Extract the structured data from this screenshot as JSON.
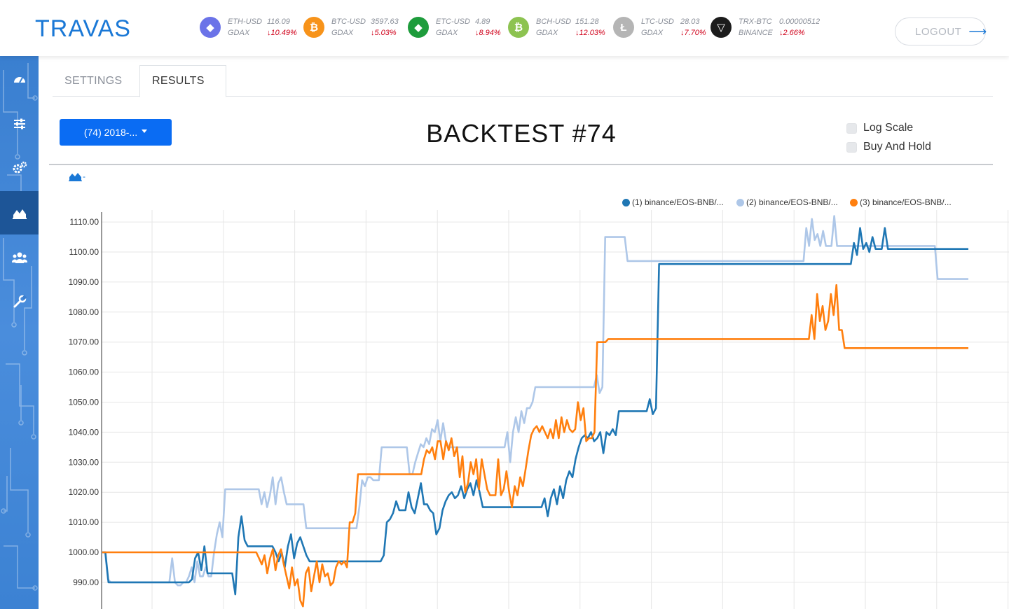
{
  "brand": "TRAVAS",
  "tickers": [
    {
      "pair": "ETH-USD",
      "exchange": "GDAX",
      "price": "116.09",
      "change": "↓10.49%",
      "icon": "ethereum-icon",
      "color": "#6b73e8",
      "glyph": "◆"
    },
    {
      "pair": "BTC-USD",
      "exchange": "GDAX",
      "price": "3597.63",
      "change": "↓5.03%",
      "icon": "bitcoin-icon",
      "color": "#f7931a",
      "glyph": "₿"
    },
    {
      "pair": "ETC-USD",
      "exchange": "GDAX",
      "price": "4.89",
      "change": "↓8.94%",
      "icon": "ethereum-classic-icon",
      "color": "#1e9c3c",
      "glyph": "◆"
    },
    {
      "pair": "BCH-USD",
      "exchange": "GDAX",
      "price": "151.28",
      "change": "↓12.03%",
      "icon": "bitcoin-cash-icon",
      "color": "#8dc351",
      "glyph": "₿"
    },
    {
      "pair": "LTC-USD",
      "exchange": "GDAX",
      "price": "28.03",
      "change": "↓7.70%",
      "icon": "litecoin-icon",
      "color": "#b5b5b5",
      "glyph": "Ł"
    },
    {
      "pair": "TRX-BTC",
      "exchange": "BINANCE",
      "price": "0.00000512",
      "change": "↓2.66%",
      "icon": "tron-icon",
      "color": "#1c1c1c",
      "glyph": "▽"
    }
  ],
  "logout_label": "LOGOUT",
  "sidebar": [
    {
      "icon": "dashboard-icon",
      "active": false
    },
    {
      "icon": "sliders-icon",
      "active": false
    },
    {
      "icon": "gears-icon",
      "active": false
    },
    {
      "icon": "area-chart-icon",
      "active": true
    },
    {
      "icon": "users-icon",
      "active": false
    },
    {
      "icon": "wrench-icon",
      "active": false
    }
  ],
  "tabs": [
    {
      "label": "SETTINGS",
      "active": false
    },
    {
      "label": "RESULTS",
      "active": true
    }
  ],
  "backtest_select": "(74) 2018-...",
  "title": "BACKTEST #74",
  "options": {
    "log_scale": "Log Scale",
    "buy_and_hold": "Buy And Hold"
  },
  "chart_toggle_label": "-",
  "colors": {
    "series1": "#1f77b4",
    "series2": "#aec7e8",
    "series3": "#ff7f0e",
    "accent": "#0a6cf3"
  },
  "chart_data": {
    "type": "line",
    "ylim": [
      982,
      1112
    ],
    "yticks": [
      "1110.00",
      "1100.00",
      "1090.00",
      "1080.00",
      "1070.00",
      "1060.00",
      "1050.00",
      "1040.00",
      "1030.00",
      "1020.00",
      "1010.00",
      "1000.00",
      "990.00"
    ],
    "series": [
      {
        "name": "(1) binance/EOS-BNB/...",
        "values": [
          1000,
          1000,
          990,
          990,
          990,
          990,
          990,
          990,
          990,
          990,
          990,
          990,
          990,
          990,
          990,
          990,
          990,
          990,
          990,
          990,
          990,
          990,
          990,
          990,
          990,
          990,
          990,
          990,
          990,
          991,
          998,
          1000,
          994,
          1002,
          993,
          993,
          993,
          993,
          993,
          993,
          993,
          993,
          993,
          986,
          1005,
          1012,
          1004,
          1002,
          1002,
          1002,
          1002,
          1002,
          1002,
          1002,
          1002,
          1002,
          1000,
          997,
          1000,
          995,
          1002,
          1006,
          998,
          1003,
          1005,
          1002,
          999,
          997,
          997,
          997,
          997,
          997,
          997,
          997,
          997,
          997,
          997,
          997,
          997,
          997,
          997,
          997,
          997,
          997,
          997,
          997,
          997,
          997,
          997,
          997,
          997,
          999,
          1010,
          1011,
          1013,
          1017,
          1014,
          1014,
          1014,
          1020,
          1015,
          1013,
          1018,
          1023,
          1016,
          1016,
          1014,
          1013,
          1006,
          1008,
          1014,
          1017,
          1019,
          1020,
          1018,
          1019,
          1022,
          1018,
          1021,
          1023,
          1019,
          1024,
          1020,
          1015,
          1015,
          1015,
          1015,
          1015,
          1015,
          1015,
          1015,
          1015,
          1015,
          1015,
          1015,
          1015,
          1015,
          1015,
          1015,
          1015,
          1015,
          1015,
          1015,
          1018,
          1012,
          1018,
          1021,
          1016,
          1022,
          1018,
          1024,
          1027,
          1025,
          1031,
          1035,
          1038,
          1039,
          1038,
          1040,
          1037,
          1038,
          1040,
          1033,
          1040,
          1039,
          1041,
          1039,
          1047,
          1047,
          1047,
          1047,
          1047,
          1047,
          1047,
          1047,
          1047,
          1047,
          1051,
          1046,
          1048,
          1096,
          1096,
          1096,
          1096,
          1096,
          1096,
          1096,
          1096,
          1096,
          1096,
          1096,
          1096,
          1096,
          1096,
          1096,
          1096,
          1096,
          1096,
          1096,
          1096,
          1096,
          1096,
          1096,
          1096,
          1096,
          1096,
          1096,
          1096,
          1096,
          1096,
          1096,
          1096,
          1096,
          1096,
          1096,
          1096,
          1096,
          1096,
          1096,
          1096,
          1096,
          1096,
          1096,
          1096,
          1096,
          1096,
          1096,
          1096,
          1096,
          1096,
          1096,
          1096,
          1096,
          1096,
          1096,
          1096,
          1096,
          1096,
          1096,
          1096,
          1096,
          1096,
          1096,
          1103,
          1099,
          1108,
          1101,
          1103,
          1100,
          1105,
          1101,
          1101,
          1101,
          1108,
          1101,
          1101,
          1101,
          1101,
          1101,
          1101,
          1101,
          1101,
          1101,
          1101,
          1101,
          1101,
          1101,
          1101,
          1101,
          1101,
          1101,
          1101,
          1101,
          1101,
          1101,
          1101,
          1101,
          1101,
          1101,
          1101,
          1101
        ]
      },
      {
        "name": "(2) binance/EOS-BNB/...",
        "values": [
          1000,
          1000,
          991,
          990,
          990,
          990,
          990,
          990,
          990,
          990,
          990,
          990,
          990,
          990,
          990,
          990,
          990,
          990,
          990,
          990,
          990,
          990,
          990,
          990,
          990,
          998,
          990,
          989,
          989,
          990,
          990,
          992,
          995,
          990,
          997,
          992,
          992,
          995,
          992,
          992,
          1000,
          1006,
          1010,
          1005,
          1021,
          1021,
          1021,
          1021,
          1021,
          1021,
          1021,
          1021,
          1021,
          1021,
          1021,
          1021,
          1021,
          1016,
          1020,
          1015,
          1019,
          1025,
          1016,
          1023,
          1025,
          1020,
          1016,
          1016,
          1016,
          1016,
          1016,
          1016,
          1016,
          1008,
          1008,
          1008,
          1008,
          1008,
          1008,
          1008,
          1008,
          1008,
          1008,
          1008,
          1008,
          1008,
          1008,
          1008,
          1008,
          1008,
          1008,
          1008,
          1015,
          1024,
          1022,
          1025,
          1025,
          1024,
          1024,
          1024,
          1035,
          1035,
          1035,
          1035,
          1035,
          1035,
          1035,
          1035,
          1035,
          1035,
          1026,
          1026,
          1030,
          1033,
          1036,
          1035,
          1038,
          1036,
          1041,
          1040,
          1044,
          1037,
          1043,
          1037,
          1035,
          1035,
          1035,
          1035,
          1035,
          1035,
          1035,
          1035,
          1035,
          1035,
          1035,
          1035,
          1035,
          1035,
          1035,
          1035,
          1035,
          1035,
          1035,
          1035,
          1035,
          1040,
          1030,
          1040,
          1045,
          1040,
          1047,
          1043,
          1048,
          1048,
          1050,
          1055,
          1055,
          1055,
          1055,
          1055,
          1055,
          1055,
          1055,
          1055,
          1055,
          1055,
          1055,
          1055,
          1055,
          1055,
          1055,
          1055,
          1055,
          1055,
          1055,
          1055,
          1055,
          1059,
          1053,
          1055,
          1105,
          1105,
          1105,
          1105,
          1105,
          1105,
          1105,
          1105,
          1097,
          1097,
          1097,
          1097,
          1097,
          1097,
          1097,
          1097,
          1097,
          1097,
          1097,
          1097,
          1097,
          1097,
          1097,
          1097,
          1097,
          1097,
          1097,
          1097,
          1097,
          1097,
          1097,
          1097,
          1097,
          1097,
          1097,
          1097,
          1097,
          1097,
          1097,
          1097,
          1097,
          1097,
          1097,
          1097,
          1097,
          1097,
          1097,
          1097,
          1097,
          1097,
          1097,
          1097,
          1097,
          1097,
          1097,
          1097,
          1097,
          1097,
          1097,
          1097,
          1097,
          1097,
          1097,
          1097,
          1097,
          1097,
          1097,
          1097,
          1097,
          1097,
          1097,
          1097,
          1108,
          1102,
          1111,
          1104,
          1106,
          1102,
          1107,
          1102,
          1102,
          1102,
          1112,
          1102,
          1102,
          1102,
          1102,
          1102,
          1102,
          1102,
          1102,
          1102,
          1102,
          1102,
          1102,
          1102,
          1102,
          1102,
          1102,
          1102,
          1102,
          1102,
          1102,
          1102,
          1102,
          1102,
          1102,
          1102,
          1102,
          1102,
          1102,
          1102,
          1102,
          1102,
          1102,
          1102,
          1102,
          1102,
          1102,
          1091,
          1091,
          1091,
          1091,
          1091,
          1091,
          1091,
          1091,
          1091,
          1091,
          1091,
          1091
        ]
      },
      {
        "name": "(3) binance/EOS-BNB/...",
        "values": [
          1000,
          1000,
          1000,
          1000,
          1000,
          1000,
          1000,
          1000,
          1000,
          1000,
          1000,
          1000,
          1000,
          1000,
          1000,
          1000,
          1000,
          1000,
          1000,
          1000,
          1000,
          1000,
          1000,
          1000,
          1000,
          1000,
          1000,
          1000,
          1000,
          1000,
          1000,
          1000,
          1000,
          1000,
          1000,
          1000,
          1000,
          1000,
          1000,
          1000,
          1000,
          1000,
          1000,
          1000,
          1000,
          1000,
          1000,
          1000,
          1000,
          1000,
          1000,
          1000,
          1000,
          1000,
          1000,
          1000,
          1000,
          998,
          996,
          999,
          993,
          998,
          1001,
          994,
          999,
          1001,
          996,
          992,
          988,
          995,
          989,
          991,
          984,
          982,
          993,
          995,
          987,
          992,
          997,
          990,
          996,
          992,
          993,
          989,
          990,
          995,
          997,
          996,
          997,
          995,
          1010,
          1010,
          1013,
          1026,
          1026,
          1026,
          1026,
          1026,
          1026,
          1026,
          1026,
          1026,
          1026,
          1026,
          1026,
          1026,
          1026,
          1026,
          1026,
          1026,
          1026,
          1026,
          1026,
          1026,
          1026,
          1026,
          1026,
          1031,
          1034,
          1033,
          1035,
          1031,
          1037,
          1037,
          1031,
          1037,
          1034,
          1038,
          1032,
          1035,
          1025,
          1032,
          1020,
          1023,
          1030,
          1026,
          1031,
          1021,
          1031,
          1026,
          1021,
          1019,
          1019,
          1019,
          1031,
          1019,
          1021,
          1027,
          1020,
          1015,
          1022,
          1019,
          1025,
          1022,
          1028,
          1034,
          1039,
          1041,
          1042,
          1040,
          1042,
          1040,
          1038,
          1041,
          1038,
          1044,
          1038,
          1045,
          1040,
          1044,
          1041,
          1040,
          1041,
          1050,
          1044,
          1048,
          1037,
          1038,
          1038,
          1040,
          1070,
          1070,
          1070,
          1070,
          1071,
          1071,
          1071,
          1071,
          1071,
          1071,
          1071,
          1071,
          1071,
          1071,
          1071,
          1071,
          1071,
          1071,
          1071,
          1071,
          1071,
          1071,
          1071,
          1071,
          1071,
          1071,
          1071,
          1071,
          1071,
          1071,
          1071,
          1071,
          1071,
          1071,
          1071,
          1071,
          1071,
          1071,
          1071,
          1071,
          1071,
          1071,
          1071,
          1071,
          1071,
          1071,
          1071,
          1071,
          1071,
          1071,
          1071,
          1071,
          1071,
          1071,
          1071,
          1071,
          1071,
          1071,
          1071,
          1071,
          1071,
          1071,
          1071,
          1071,
          1071,
          1071,
          1071,
          1071,
          1071,
          1071,
          1071,
          1071,
          1071,
          1071,
          1071,
          1071,
          1071,
          1071,
          1079,
          1071,
          1086,
          1077,
          1082,
          1074,
          1077,
          1086,
          1079,
          1089,
          1074,
          1074,
          1068,
          1068,
          1068,
          1068,
          1068,
          1068,
          1068,
          1068,
          1068,
          1068,
          1068,
          1068,
          1068,
          1068,
          1068,
          1068,
          1068,
          1068,
          1068,
          1068,
          1068,
          1068,
          1068,
          1068,
          1068,
          1068,
          1068,
          1068,
          1068,
          1068,
          1068,
          1068,
          1068,
          1068,
          1068,
          1068,
          1068,
          1068,
          1068,
          1068,
          1068,
          1068,
          1068,
          1068,
          1068,
          1068
        ]
      }
    ]
  }
}
